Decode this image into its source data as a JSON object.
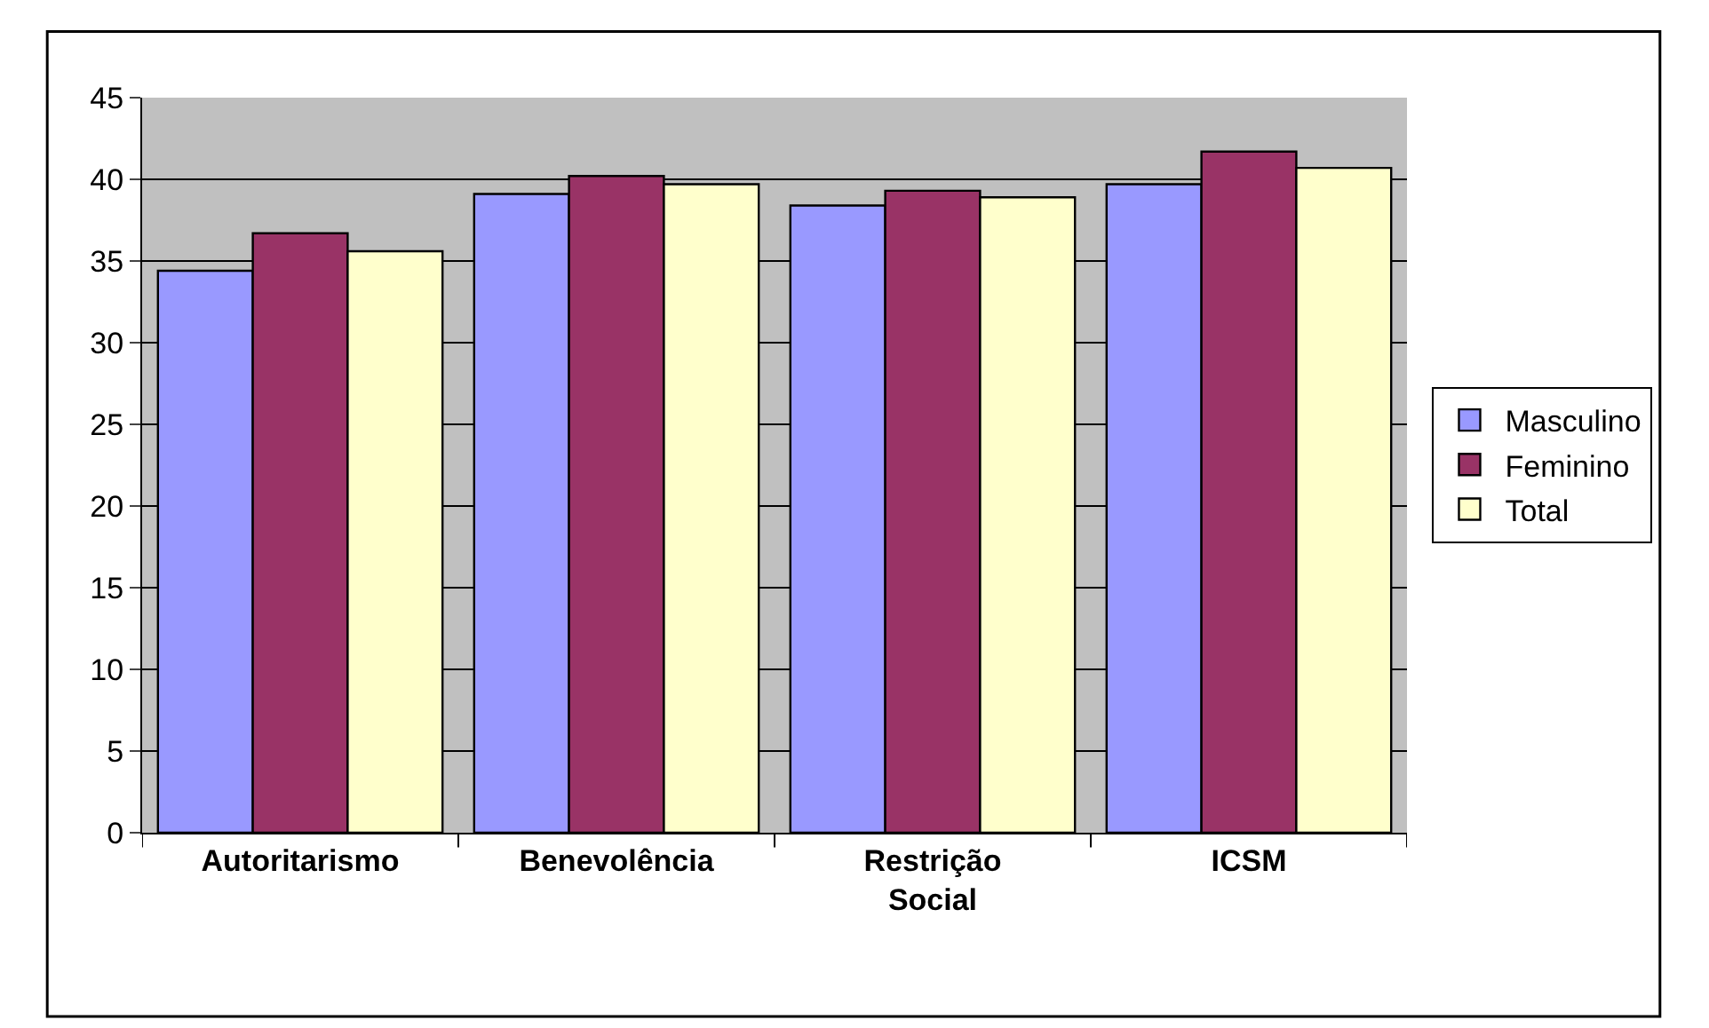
{
  "chart_data": {
    "type": "bar",
    "categories": [
      "Autoritarismo",
      "Benevolência",
      "Restrição Social",
      "ICSM"
    ],
    "series": [
      {
        "name": "Masculino",
        "color": "#9999ff",
        "values": [
          34.4,
          39.1,
          38.4,
          39.7
        ]
      },
      {
        "name": "Feminino",
        "color": "#993366",
        "values": [
          36.7,
          40.2,
          39.3,
          41.7
        ]
      },
      {
        "name": "Total",
        "color": "#ffffcc",
        "values": [
          35.6,
          39.7,
          38.9,
          40.7
        ]
      }
    ],
    "ylim": [
      0,
      45
    ],
    "yticks": [
      0,
      5,
      10,
      15,
      20,
      25,
      30,
      35,
      40,
      45
    ],
    "grid": "y",
    "legend": "right"
  }
}
